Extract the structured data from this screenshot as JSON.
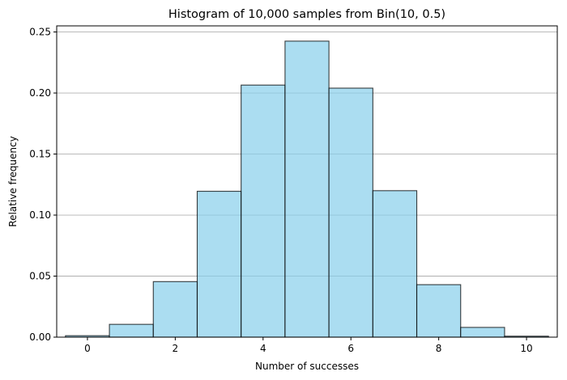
{
  "chart_data": {
    "type": "bar",
    "title": "Histogram of 10,000 samples from Bin(10, 0.5)",
    "xlabel": "Number of successes",
    "ylabel": "Relative frequency",
    "categories": [
      "0",
      "1",
      "2",
      "3",
      "4",
      "5",
      "6",
      "7",
      "8",
      "9",
      "10"
    ],
    "x": [
      0,
      1,
      2,
      3,
      4,
      5,
      6,
      7,
      8,
      9,
      10
    ],
    "values": [
      0.0012,
      0.0105,
      0.0455,
      0.1195,
      0.2065,
      0.2425,
      0.204,
      0.12,
      0.043,
      0.008,
      0.0008
    ],
    "bin_width": 1,
    "xlim": [
      -0.7,
      10.7
    ],
    "ylim": [
      0,
      0.255
    ],
    "xticks": [
      0,
      2,
      4,
      6,
      8,
      10
    ],
    "xtick_labels": [
      "0",
      "2",
      "4",
      "6",
      "8",
      "10"
    ],
    "yticks": [
      0.0,
      0.05,
      0.1,
      0.15,
      0.2,
      0.25
    ],
    "ytick_labels": [
      "0.00",
      "0.05",
      "0.10",
      "0.15",
      "0.20",
      "0.25"
    ],
    "grid": "y-axis only",
    "legend": "none",
    "colors": {
      "bar_fill": "#87ceeb",
      "bar_fill_opacity": 0.7,
      "bar_edge": "#000000",
      "grid": "#b0b0b0"
    }
  }
}
